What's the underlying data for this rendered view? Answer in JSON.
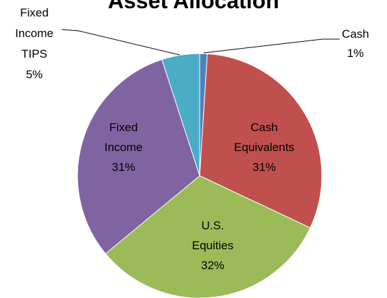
{
  "chart_data": {
    "type": "pie",
    "title": "Asset Allocation",
    "categories": [
      "Cash",
      "Cash Equivalents",
      "U.S. Equities",
      "Fixed Income",
      "Fixed Income TIPS"
    ],
    "values": [
      1,
      31,
      32,
      31,
      5
    ],
    "value_labels": [
      "1%",
      "31%",
      "32%",
      "31%",
      "5%"
    ],
    "colors": [
      "#4f81bd",
      "#c0504d",
      "#9bbb59",
      "#8064a2",
      "#4bacc6"
    ]
  }
}
